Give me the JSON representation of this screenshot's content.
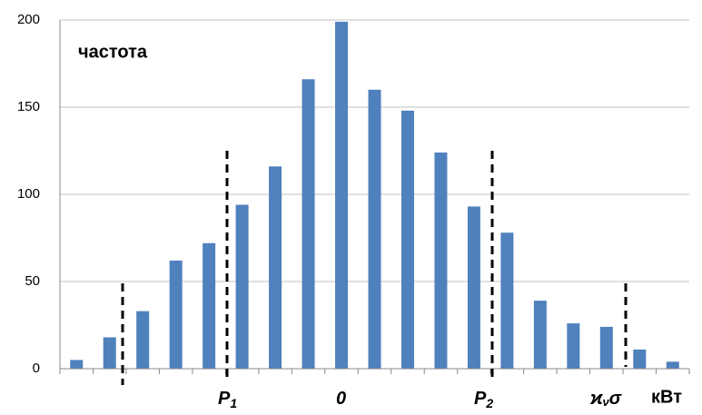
{
  "chart_data": {
    "type": "bar",
    "y_label": "частота",
    "x_label": "кВт",
    "categories": [
      null,
      null,
      null,
      null,
      null,
      null,
      null,
      null,
      null,
      null,
      null,
      null,
      null,
      null,
      null,
      null,
      null,
      null,
      null
    ],
    "values": [
      5,
      18,
      33,
      62,
      72,
      94,
      116,
      166,
      199,
      160,
      148,
      124,
      93,
      78,
      39,
      26,
      24,
      11,
      4
    ],
    "color": "#4f81bd",
    "ylim": [
      0,
      200
    ],
    "yticks": [
      0,
      50,
      100,
      150,
      200
    ],
    "grid": true,
    "annotations": [
      {
        "text": "P",
        "sub": "1"
      },
      {
        "text": "0"
      },
      {
        "text": "P",
        "sub": "2"
      },
      {
        "text": "ϰ",
        "sub": "ν",
        "after": "σ"
      }
    ]
  }
}
